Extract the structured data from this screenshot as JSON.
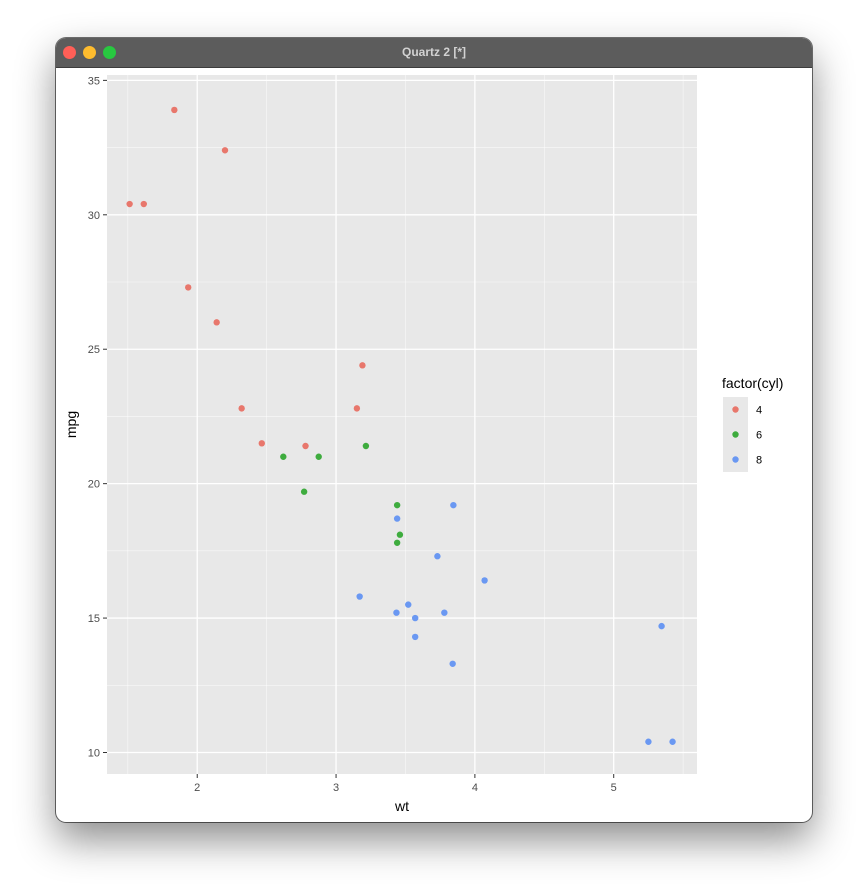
{
  "window": {
    "title": "Quartz 2 [*]"
  },
  "colors": {
    "panel_bg": "#e8e8e8",
    "grid_major": "#ffffff",
    "cyl_4": "#e8776c",
    "cyl_6": "#3eac3e",
    "cyl_8": "#6a98f2"
  },
  "chart_data": {
    "type": "scatter",
    "xlabel": "wt",
    "ylabel": "mpg",
    "xlim": [
      1.35,
      5.6
    ],
    "ylim": [
      9.2,
      35.2
    ],
    "xticks": [
      2,
      3,
      4,
      5
    ],
    "yticks": [
      10,
      15,
      20,
      25,
      30,
      35
    ],
    "grid": true,
    "legend": {
      "title": "factor(cyl)",
      "placement": "right"
    },
    "series": [
      {
        "name": "4",
        "color": "#e8776c",
        "points": [
          {
            "x": 1.513,
            "y": 30.4
          },
          {
            "x": 1.615,
            "y": 30.4
          },
          {
            "x": 1.835,
            "y": 33.9
          },
          {
            "x": 1.935,
            "y": 27.3
          },
          {
            "x": 2.14,
            "y": 26.0
          },
          {
            "x": 2.2,
            "y": 32.4
          },
          {
            "x": 2.32,
            "y": 22.8
          },
          {
            "x": 2.465,
            "y": 21.5
          },
          {
            "x": 2.78,
            "y": 21.4
          },
          {
            "x": 3.15,
            "y": 22.8
          },
          {
            "x": 3.19,
            "y": 24.4
          }
        ]
      },
      {
        "name": "6",
        "color": "#3eac3e",
        "points": [
          {
            "x": 2.62,
            "y": 21.0
          },
          {
            "x": 2.77,
            "y": 19.7
          },
          {
            "x": 2.875,
            "y": 21.0
          },
          {
            "x": 3.215,
            "y": 21.4
          },
          {
            "x": 3.44,
            "y": 17.8
          },
          {
            "x": 3.44,
            "y": 19.2
          },
          {
            "x": 3.46,
            "y": 18.1
          }
        ]
      },
      {
        "name": "8",
        "color": "#6a98f2",
        "points": [
          {
            "x": 3.17,
            "y": 15.8
          },
          {
            "x": 3.435,
            "y": 15.2
          },
          {
            "x": 3.44,
            "y": 18.7
          },
          {
            "x": 3.52,
            "y": 15.5
          },
          {
            "x": 3.57,
            "y": 14.3
          },
          {
            "x": 3.57,
            "y": 15.0
          },
          {
            "x": 3.73,
            "y": 17.3
          },
          {
            "x": 3.78,
            "y": 15.2
          },
          {
            "x": 3.84,
            "y": 13.3
          },
          {
            "x": 3.845,
            "y": 19.2
          },
          {
            "x": 4.07,
            "y": 16.4
          },
          {
            "x": 5.25,
            "y": 10.4
          },
          {
            "x": 5.345,
            "y": 14.7
          },
          {
            "x": 5.424,
            "y": 10.4
          }
        ]
      }
    ]
  }
}
